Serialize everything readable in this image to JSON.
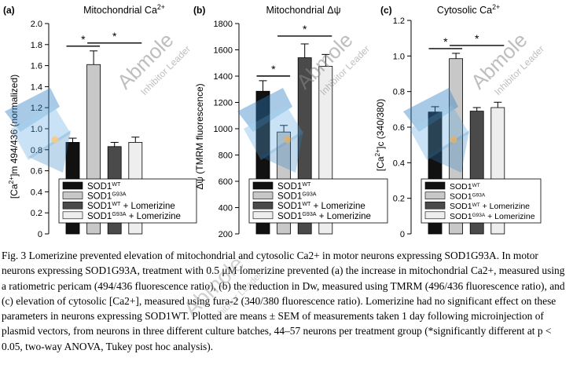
{
  "figure": {
    "chart_data": [
      {
        "type": "bar",
        "panel_label": "(a)",
        "title": "Mitochondrial Ca2+",
        "ylabel": "[Ca2+]m 494/436 (normalized)",
        "ylim": [
          0,
          2.0
        ],
        "yticks": [
          "0",
          "0.2",
          "0.4",
          "0.6",
          "0.8",
          "1.0",
          "1.2",
          "1.4",
          "1.6",
          "1.8",
          "2.0"
        ],
        "categories": [
          "SOD1WT",
          "SOD1G93A",
          "SOD1WT + Lomerizine",
          "SOD1G93A + Lomerizine"
        ],
        "values": [
          0.87,
          1.61,
          0.83,
          0.87
        ],
        "errors": [
          0.04,
          0.13,
          0.04,
          0.05
        ],
        "significance": [
          {
            "from": 0,
            "to": 1,
            "label": "*"
          },
          {
            "from": 1,
            "to": 3,
            "label": "*"
          }
        ]
      },
      {
        "type": "bar",
        "panel_label": "(b)",
        "title": "Mitochondrial Δψ",
        "ylabel": "Δψ (TMRM fluorescence)",
        "ylim": [
          200,
          1800
        ],
        "yticks": [
          "200",
          "400",
          "600",
          "800",
          "1000",
          "1200",
          "1400",
          "1600",
          "1800"
        ],
        "categories": [
          "SOD1WT",
          "SOD1G93A",
          "SOD1WT + Lomerizine",
          "SOD1G93A + Lomerizine"
        ],
        "values": [
          1285,
          975,
          1540,
          1475
        ],
        "errors": [
          80,
          50,
          105,
          90
        ],
        "significance": [
          {
            "from": 0,
            "to": 1,
            "label": "*"
          },
          {
            "from": 1,
            "to": 3,
            "label": "*"
          }
        ]
      },
      {
        "type": "bar",
        "panel_label": "(c)",
        "title": "Cytosolic Ca2+",
        "ylabel": "[Ca2+]c (340/380)",
        "ylim": [
          0,
          1.2
        ],
        "yticks": [
          "0",
          "0.2",
          "0.4",
          "0.6",
          "0.8",
          "1.0",
          "1.2"
        ],
        "categories": [
          "SOD1WT",
          "SOD1G93A",
          "SOD1WT + Lomerizine",
          "SOD1G93A + Lomerizine"
        ],
        "values": [
          0.685,
          0.985,
          0.69,
          0.71
        ],
        "errors": [
          0.03,
          0.03,
          0.02,
          0.03
        ],
        "significance": [
          {
            "from": 0,
            "to": 1,
            "label": "*"
          },
          {
            "from": 1,
            "to": 3,
            "label": "*"
          }
        ]
      }
    ],
    "legend": {
      "entries": [
        {
          "base": "SOD1",
          "sup": "WT",
          "suffix": ""
        },
        {
          "base": "SOD1",
          "sup": "G93A",
          "suffix": ""
        },
        {
          "base": "SOD1",
          "sup": "WT",
          "suffix": " + Lomerizine"
        },
        {
          "base": "SOD1",
          "sup": "G93A",
          "suffix": " + Lomerizine"
        }
      ],
      "colors": [
        "#111111",
        "#c8c8c8",
        "#4a4a4a",
        "#eeeeee"
      ]
    }
  },
  "caption": "Fig. 3 Lomerizine prevented elevation of mitochondrial and cytosolic Ca2+ in motor neurons expressing SOD1G93A. In motor neurons expressing SOD1G93A, treatment with 0.5 μM lomerizine prevented (a) the increase in mitochondrial Ca2+, measured using a ratiometric pericam (494/436 fluorescence ratio), (b) the reduction in Dw, measured using TMRM (496/436 fluorescence ratio), and (c) elevation of cytosolic [Ca2+], measured using fura-2 (340/380 fluorescence ratio). Lomerizine had no significant effect on these parameters in neurons expressing SOD1WT. Plotted are means ± SEM of measurements taken 1 day following microinjection of plasmid vectors, from neurons in three different culture batches, 44–57 neurons per treatment group (*significantly different at p < 0.05, two-way ANOVA, Tukey post hoc analysis).",
  "watermark": {
    "brand": "Abmole",
    "tagline": "Inhibitor Leader"
  }
}
